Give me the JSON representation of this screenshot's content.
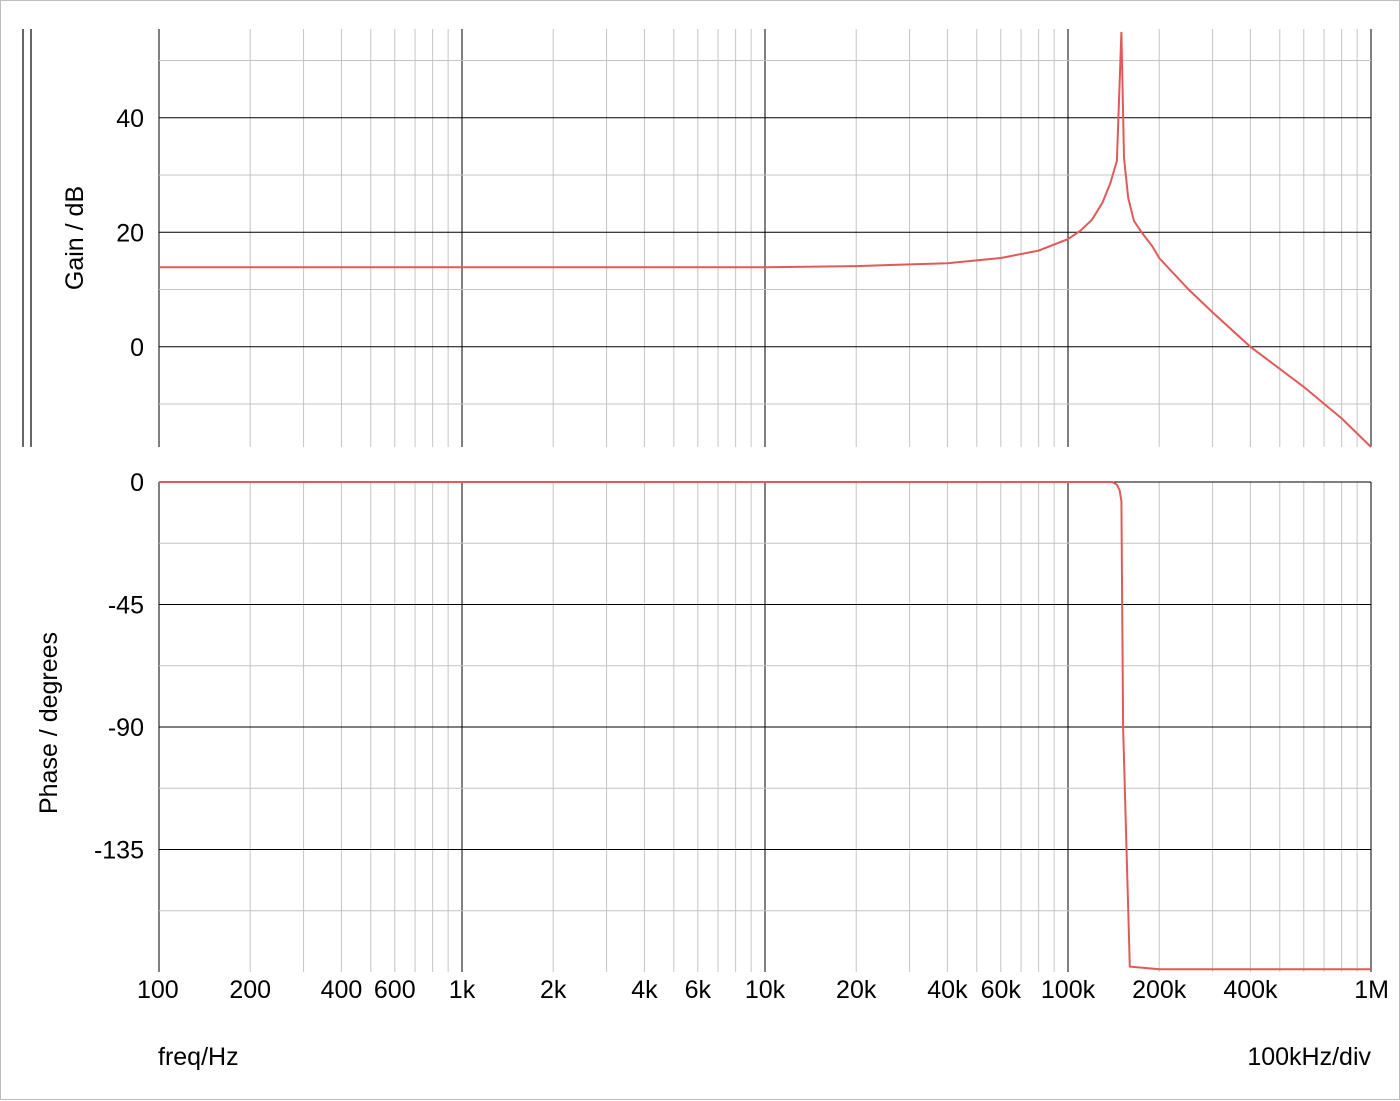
{
  "chart_data": {
    "type": "line",
    "x_scale": "log",
    "x_axis": {
      "label": "freq/Hz",
      "range": [
        100,
        1000000
      ],
      "tick_values": [
        100,
        200,
        400,
        600,
        1000,
        2000,
        4000,
        6000,
        10000,
        20000,
        40000,
        60000,
        100000,
        200000,
        400000,
        1000000
      ],
      "tick_labels": [
        "100",
        "200",
        "400",
        "600",
        "1k",
        "2k",
        "4k",
        "6k",
        "10k",
        "20k",
        "40k",
        "60k",
        "100k",
        "200k",
        "400k",
        "1M"
      ],
      "scale_note": "100kHz/div"
    },
    "grid": true,
    "colors": {
      "trace": "#e05a5a",
      "grid_major": "#000000",
      "grid_minor": "#c4c4c4"
    },
    "panels": [
      {
        "name": "gain",
        "ylabel": "Gain / dB",
        "ylim": [
          -17.5,
          55.5
        ],
        "yticks": [
          40,
          20,
          0
        ],
        "ytick_labels": [
          "40",
          "20",
          "0"
        ],
        "series": [
          {
            "x": [
              100,
              200,
              500,
              1000,
              2000,
              5000,
              10000,
              20000,
              40000,
              60000,
              80000,
              100000,
              110000,
              120000,
              130000,
              138000,
              145000,
              150000,
              153000,
              158000,
              165000,
              175000,
              190000,
              200000,
              250000,
              300000,
              400000,
              600000,
              800000,
              1000000
            ],
            "y": [
              13.9,
              13.9,
              13.9,
              13.9,
              13.9,
              13.9,
              13.9,
              14.1,
              14.6,
              15.5,
              16.8,
              18.8,
              20.3,
              22.2,
              25.2,
              28.6,
              32.5,
              55.0,
              33.0,
              26.0,
              22.0,
              20.0,
              17.5,
              15.5,
              10.0,
              6.0,
              0.0,
              -7.0,
              -12.5,
              -17.5
            ]
          }
        ]
      },
      {
        "name": "phase",
        "ylabel": "Phase / degrees",
        "ylim": [
          -180,
          0
        ],
        "yticks": [
          0,
          -45,
          -90,
          -135
        ],
        "ytick_labels": [
          "0",
          "-45",
          "-90",
          "-135"
        ],
        "series": [
          {
            "x": [
              100,
              1000,
              10000,
              100000,
              140000,
              145000,
              148000,
              150000,
              152000,
              160000,
              200000,
              400000,
              1000000
            ],
            "y": [
              0,
              0,
              0,
              0,
              0,
              -1,
              -3,
              -7,
              -90,
              -178,
              -179,
              -179,
              -179
            ]
          }
        ]
      }
    ]
  }
}
